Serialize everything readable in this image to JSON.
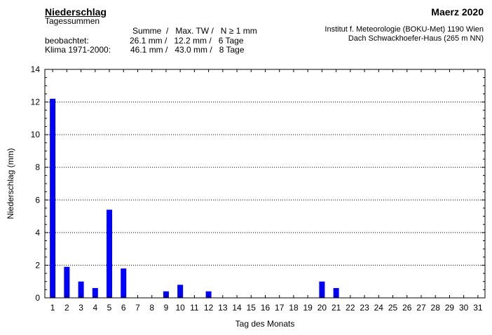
{
  "header": {
    "title": "Niederschlag",
    "subtitle": "Tagessummen",
    "month": "Maerz 2020",
    "institute_line1": "Institut f. Meteorologie (BOKU-Met) 1190 Wien",
    "institute_line2": "Dach Schwackhoefer-Haus (265 m NN)",
    "stats_header": "Summe  /   Max. TW /   N ≥ 1 mm",
    "observed_label": "beobachtet:",
    "observed_values": "26.1 mm /   12.2 mm /   6 Tage",
    "climate_label": "Klima 1971-2000:",
    "climate_values": "46.1 mm /   43.0 mm /   8 Tage"
  },
  "colors": {
    "bar": "#0000ff",
    "grid": "#000000"
  },
  "chart_data": {
    "type": "bar",
    "title": "Niederschlag",
    "xlabel": "Tag des Monats",
    "ylabel": "Niederschlag (mm)",
    "ylim": [
      0,
      14
    ],
    "yticks": [
      0,
      2,
      4,
      6,
      8,
      10,
      12,
      14
    ],
    "grid": "horizontal dotted",
    "categories": [
      "1",
      "2",
      "3",
      "4",
      "5",
      "6",
      "7",
      "8",
      "9",
      "10",
      "11",
      "12",
      "13",
      "14",
      "15",
      "16",
      "17",
      "18",
      "19",
      "20",
      "21",
      "22",
      "23",
      "24",
      "25",
      "26",
      "27",
      "28",
      "29",
      "30",
      "31"
    ],
    "values": [
      12.2,
      1.9,
      1.0,
      0.6,
      5.4,
      1.8,
      0,
      0,
      0.4,
      0.8,
      0,
      0.4,
      0,
      0,
      0,
      0,
      0,
      0,
      0,
      1.0,
      0.6,
      0,
      0,
      0,
      0,
      0,
      0,
      0,
      0,
      0,
      0
    ]
  }
}
